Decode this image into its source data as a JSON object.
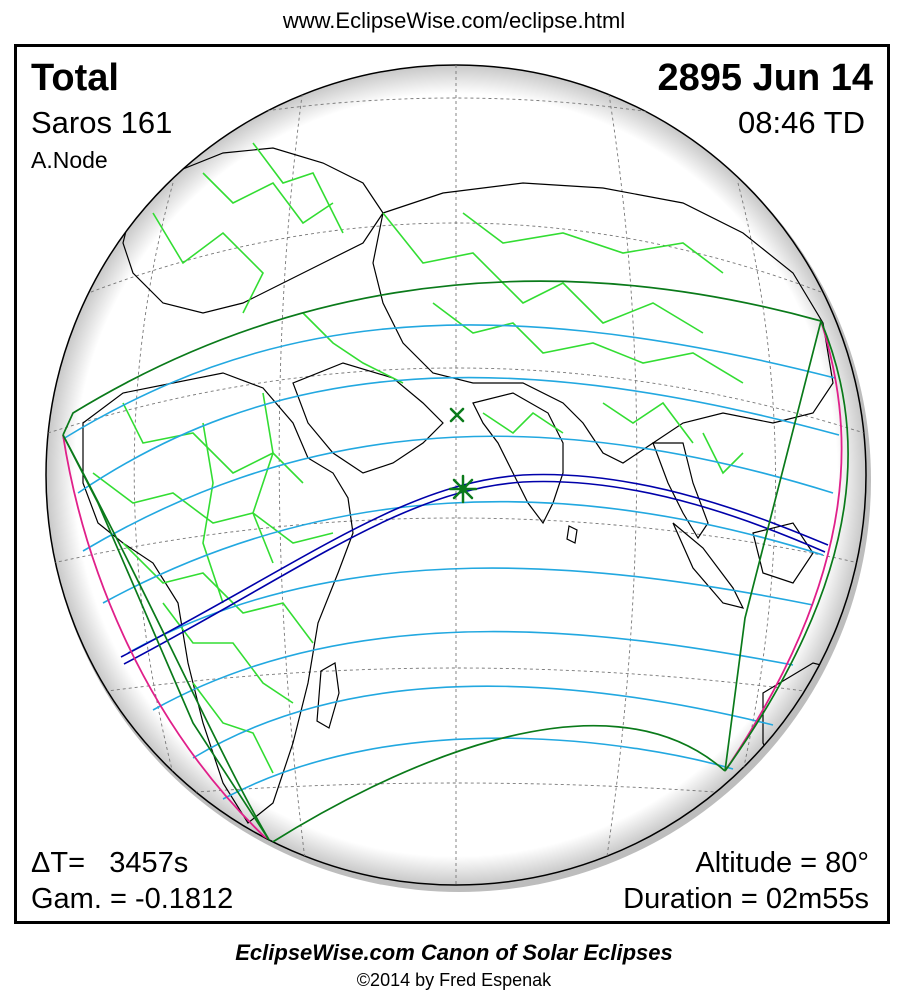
{
  "header": {
    "url": "www.EclipseWise.com/eclipse.html"
  },
  "eclipse": {
    "type": "Total",
    "date": "2895 Jun 14",
    "saros": "Saros 161",
    "time": "08:46 TD",
    "node": "A.Node",
    "delta_t": "ΔT=   3457s",
    "gamma": "Gam. = -0.1812",
    "altitude": "Altitude = 80°",
    "duration": "Duration = 02m55s"
  },
  "colors": {
    "landmass": "#000000",
    "borders": "#33dd33",
    "penumbral_limit": "#0a7a1a",
    "partial_lines": "#22a8e0",
    "central_path": "#0000aa",
    "rise_set_curve": "#e0208a",
    "greatest_eclipse_marker": "#0a7a1a"
  },
  "markers": {
    "greatest_eclipse": "green-star-icon",
    "subsolar_point": "green-x-icon"
  },
  "footer": {
    "title": "EclipseWise.com Canon of Solar Eclipses",
    "copyright": "©2014 by Fred Espenak"
  }
}
